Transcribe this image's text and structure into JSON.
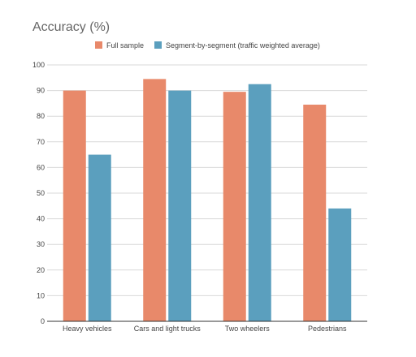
{
  "chart_data": {
    "type": "bar",
    "title": "Accuracy (%)",
    "xlabel": "",
    "ylabel": "",
    "categories": [
      "Heavy vehicles",
      "Cars and light trucks",
      "Two wheelers",
      "Pedestrians"
    ],
    "series": [
      {
        "name": "Full sample",
        "values": [
          90,
          94.5,
          89.5,
          84.5
        ],
        "color": "#e8896a"
      },
      {
        "name": "Segment-by-segment (traffic weighted average)",
        "values": [
          65,
          90,
          92.5,
          44
        ],
        "color": "#5b9fbe"
      }
    ],
    "ylim": [
      0,
      100
    ],
    "yticks": [
      0,
      10,
      20,
      30,
      40,
      50,
      60,
      70,
      80,
      90,
      100
    ],
    "grid": true,
    "legend": "top-center"
  }
}
